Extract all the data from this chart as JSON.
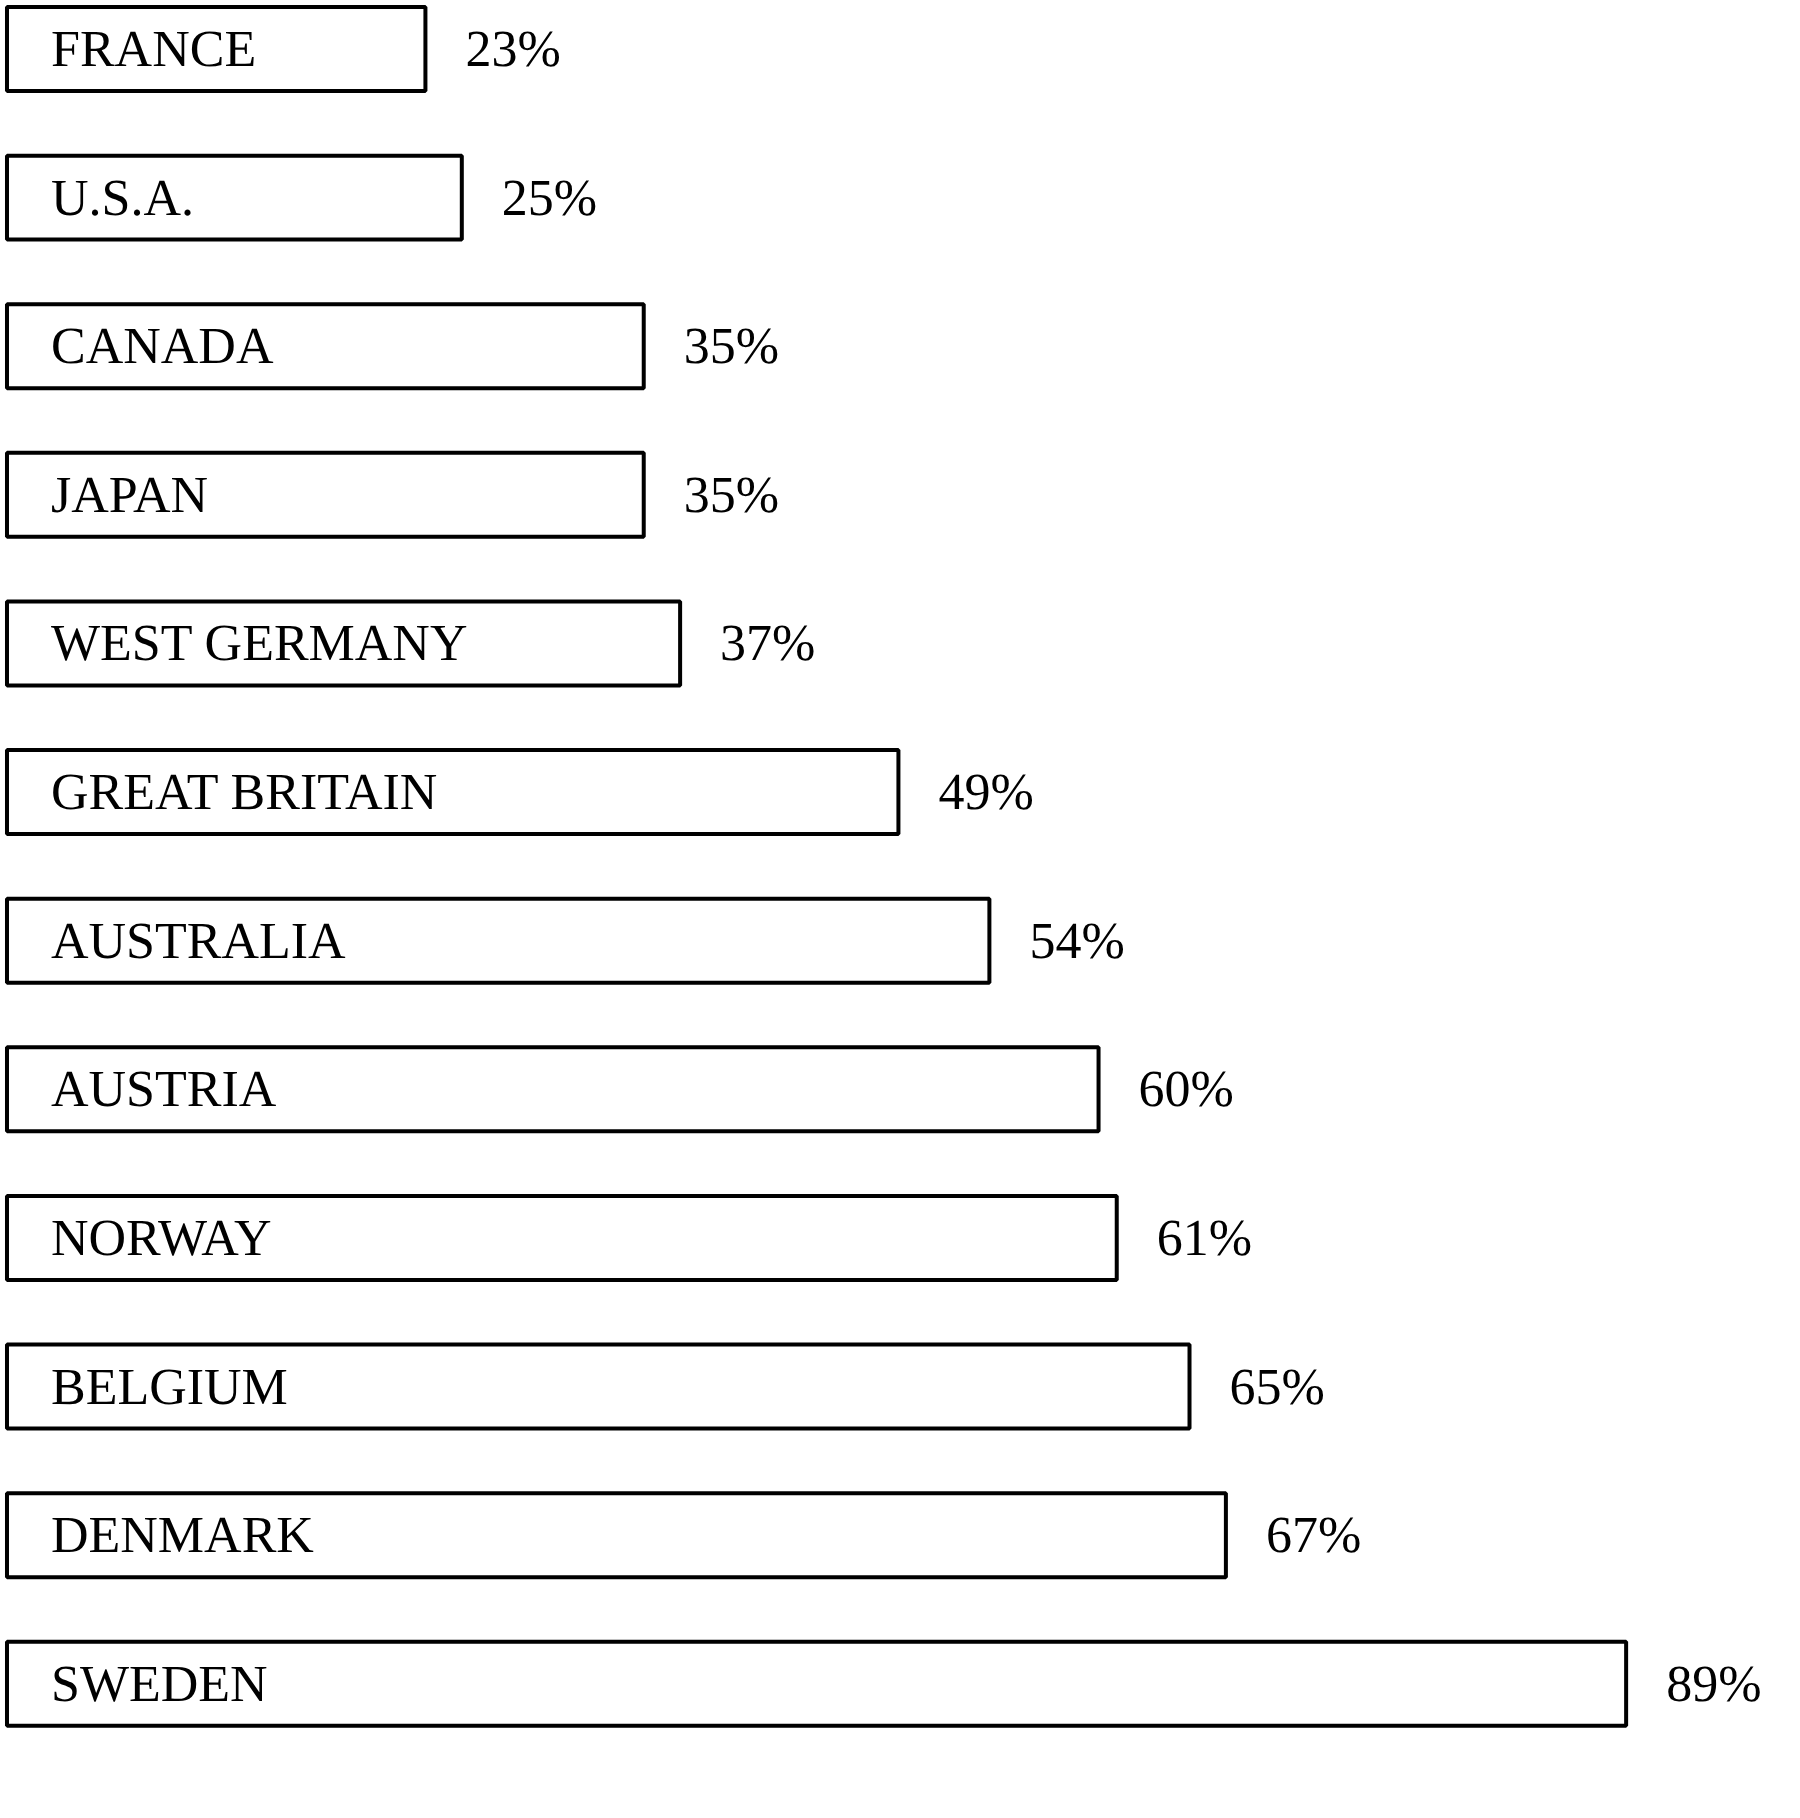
{
  "chart_data": {
    "type": "bar",
    "orientation": "horizontal",
    "color": "#ffffff",
    "categories": [
      "FRANCE",
      "U.S.A.",
      "CANADA",
      "JAPAN",
      "WEST GERMANY",
      "GREAT BRITAIN",
      "AUSTRALIA",
      "AUSTRIA",
      "NORWAY",
      "BELGIUM",
      "DENMARK",
      "SWEDEN"
    ],
    "values": [
      23,
      25,
      35,
      35,
      37,
      49,
      54,
      60,
      61,
      65,
      67,
      89
    ],
    "value_labels": [
      "23%",
      "25%",
      "35%",
      "35%",
      "37%",
      "49%",
      "54%",
      "60%",
      "61%",
      "65%",
      "67%",
      "89%"
    ]
  }
}
